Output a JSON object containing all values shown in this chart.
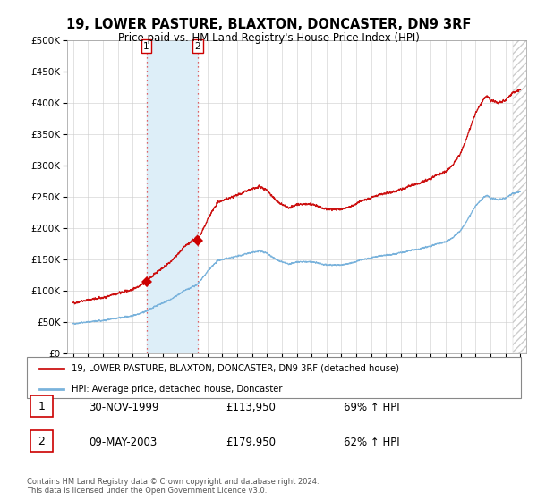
{
  "title": "19, LOWER PASTURE, BLAXTON, DONCASTER, DN9 3RF",
  "subtitle": "Price paid vs. HM Land Registry's House Price Index (HPI)",
  "sale1_price": 113950,
  "sale1_label": "1",
  "sale1_pct": "69% ↑ HPI",
  "sale1_date_str": "30-NOV-1999",
  "sale1_t": 1999.917,
  "sale2_price": 179950,
  "sale2_label": "2",
  "sale2_pct": "62% ↑ HPI",
  "sale2_date_str": "09-MAY-2003",
  "sale2_t": 2003.36,
  "hpi_color": "#7ab3dc",
  "price_color": "#cc1111",
  "marker_color": "#cc0000",
  "highlight_color": "#ddeef8",
  "legend_label_price": "19, LOWER PASTURE, BLAXTON, DONCASTER, DN9 3RF (detached house)",
  "legend_label_hpi": "HPI: Average price, detached house, Doncaster",
  "footer": "Contains HM Land Registry data © Crown copyright and database right 2024.\nThis data is licensed under the Open Government Licence v3.0.",
  "ylim": [
    0,
    500000
  ],
  "yticks": [
    0,
    50000,
    100000,
    150000,
    200000,
    250000,
    300000,
    350000,
    400000,
    450000,
    500000
  ],
  "xstart_year": 1995,
  "xend_year": 2025
}
